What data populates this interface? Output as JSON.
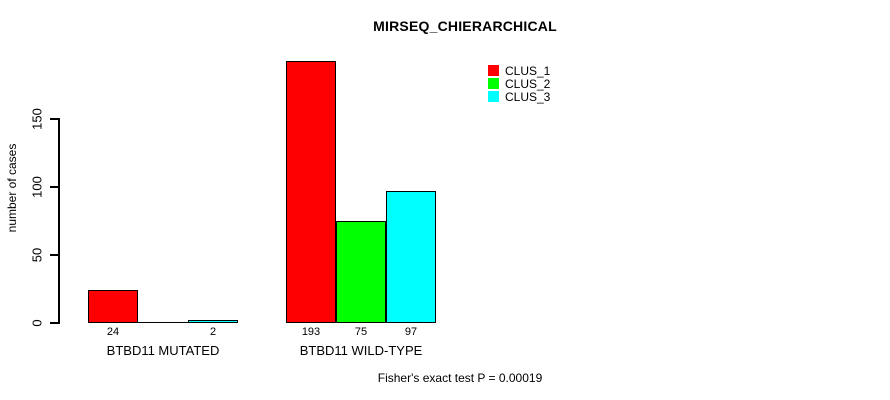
{
  "chart_data": {
    "type": "bar",
    "title": "MIRSEQ_CHIERARCHICAL",
    "ylabel": "number of cases",
    "xlabel": "",
    "categories": [
      "BTBD11 MUTATED",
      "BTBD11 WILD-TYPE"
    ],
    "series": [
      {
        "name": "CLUS_1",
        "color": "#FF0000",
        "values": [
          24,
          193
        ]
      },
      {
        "name": "CLUS_2",
        "color": "#00FF00",
        "values": [
          0,
          75
        ]
      },
      {
        "name": "CLUS_3",
        "color": "#00FFFF",
        "values": [
          2,
          97
        ]
      }
    ],
    "yticks": [
      0,
      50,
      100,
      150
    ],
    "ylim": [
      0,
      200
    ],
    "grid": false,
    "bar_borders_color": "#000000",
    "legend_position": "top-right",
    "bar_value_labels_shown": true,
    "annotation": "Fisher's exact test P = 0.00019"
  }
}
